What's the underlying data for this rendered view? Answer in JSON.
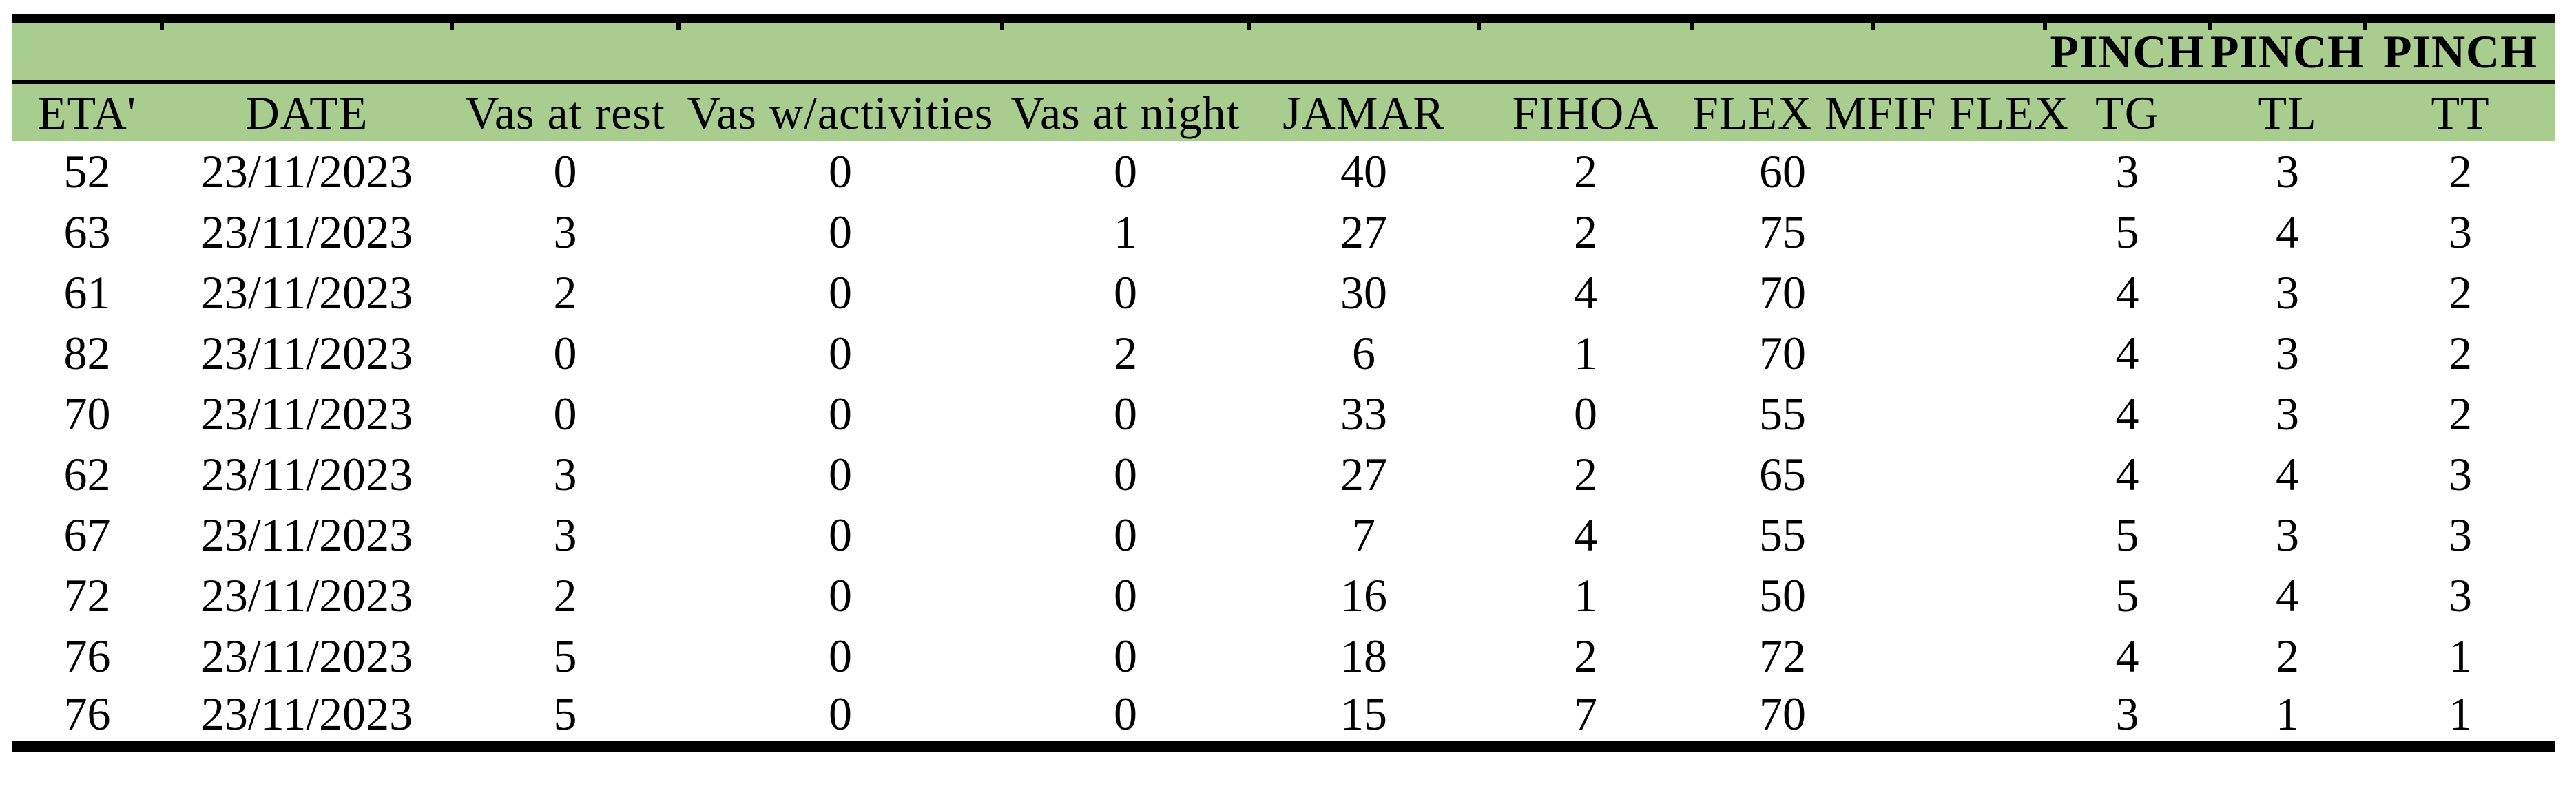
{
  "table": {
    "pinch_labels": [
      "PINCH",
      "PINCH",
      "PINCH"
    ],
    "columns": [
      {
        "key": "eta",
        "label": "ETA'",
        "span": 1,
        "pinch": false
      },
      {
        "key": "date",
        "label": "DATE",
        "span": 1,
        "pinch": false
      },
      {
        "key": "vas_rest",
        "label": "Vas at rest",
        "span": 1,
        "pinch": false
      },
      {
        "key": "vas_act",
        "label": "Vas w/activities",
        "span": 1,
        "pinch": false
      },
      {
        "key": "vas_night",
        "label": "Vas at night",
        "span": 1,
        "pinch": false
      },
      {
        "key": "jamar",
        "label": "JAMAR",
        "span": 1,
        "pinch": false
      },
      {
        "key": "fihoa",
        "label": "FIHOA",
        "span": 1,
        "pinch": false
      },
      {
        "key": "flex",
        "label": "FLEX MFIF FLEX",
        "span": 2,
        "pinch": false
      },
      {
        "key": "tg",
        "label": "TG",
        "span": 1,
        "pinch": true
      },
      {
        "key": "tl",
        "label": "TL",
        "span": 1,
        "pinch": true
      },
      {
        "key": "tt",
        "label": "TT",
        "span": 1,
        "pinch": true
      }
    ],
    "rows": [
      [
        "52",
        "23/11/2023",
        "0",
        "0",
        "0",
        "40",
        "2",
        "60",
        "3",
        "3",
        "2"
      ],
      [
        "63",
        "23/11/2023",
        "3",
        "0",
        "1",
        "27",
        "2",
        "75",
        "5",
        "4",
        "3"
      ],
      [
        "61",
        "23/11/2023",
        "2",
        "0",
        "0",
        "30",
        "4",
        "70",
        "4",
        "3",
        "2"
      ],
      [
        "82",
        "23/11/2023",
        "0",
        "0",
        "2",
        "6",
        "1",
        "70",
        "4",
        "3",
        "2"
      ],
      [
        "70",
        "23/11/2023",
        "0",
        "0",
        "0",
        "33",
        "0",
        "55",
        "4",
        "3",
        "2"
      ],
      [
        "62",
        "23/11/2023",
        "3",
        "0",
        "0",
        "27",
        "2",
        "65",
        "4",
        "4",
        "3"
      ],
      [
        "67",
        "23/11/2023",
        "3",
        "0",
        "0",
        "7",
        "4",
        "55",
        "5",
        "3",
        "3"
      ],
      [
        "72",
        "23/11/2023",
        "2",
        "0",
        "0",
        "16",
        "1",
        "50",
        "5",
        "4",
        "3"
      ],
      [
        "76",
        "23/11/2023",
        "5",
        "0",
        "0",
        "18",
        "2",
        "72",
        "4",
        "2",
        "1"
      ],
      [
        "76",
        "23/11/2023",
        "5",
        "0",
        "0",
        "15",
        "7",
        "70",
        "3",
        "1",
        "1"
      ]
    ]
  },
  "colors": {
    "header_green": "#A9CD8F",
    "rule_black": "#000000",
    "background": "#FFFFFF",
    "text": "#000000"
  }
}
